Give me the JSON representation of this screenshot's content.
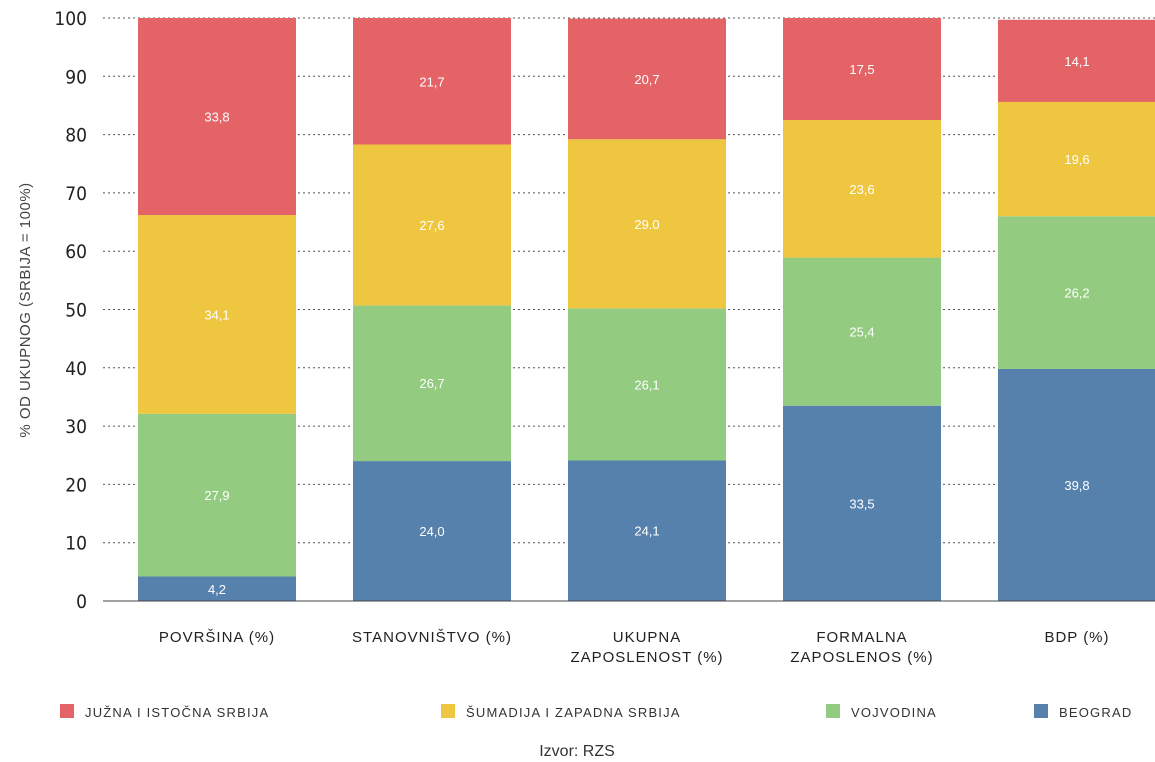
{
  "chart_data": {
    "type": "bar",
    "stacked": true,
    "categories": [
      [
        "POVRŠINA (%)"
      ],
      [
        "STANOVNIŠTVO (%)"
      ],
      [
        "UKUPNA",
        "ZAPOSLENOST (%)"
      ],
      [
        "FORMALNA",
        "ZAPOSLENOS (%)"
      ],
      [
        "BDP (%)"
      ]
    ],
    "series": [
      {
        "name": "BEOGRAD",
        "color": "#5681ad",
        "values": [
          4.2,
          24.0,
          24.1,
          33.5,
          39.8
        ],
        "labels": [
          "4,2",
          "24,0",
          "24,1",
          "33,5",
          "39,8"
        ]
      },
      {
        "name": "VOJVODINA",
        "color": "#93cb80",
        "values": [
          27.9,
          26.7,
          26.1,
          25.4,
          26.2
        ],
        "labels": [
          "27,9",
          "26,7",
          "26,1",
          "25,4",
          "26,2"
        ]
      },
      {
        "name": "ŠUMADIJA I ZAPADNA SRBIJA",
        "color": "#eec63f",
        "values": [
          34.1,
          27.6,
          29.0,
          23.6,
          19.6
        ],
        "labels": [
          "34,1",
          "27,6",
          "29.0",
          "23,6",
          "19,6"
        ]
      },
      {
        "name": "JUŽNA I ISTOČNA SRBIJA",
        "color": "#e46366",
        "values": [
          33.8,
          21.7,
          20.7,
          17.5,
          14.1
        ],
        "labels": [
          "33,8",
          "21,7",
          "20,7",
          "17,5",
          "14,1"
        ]
      }
    ],
    "legend_order": [
      "JUŽNA I ISTOČNA SRBIJA",
      "ŠUMADIJA I ZAPADNA SRBIJA",
      "VOJVODINA",
      "BEOGRAD"
    ],
    "legend_position": "bottom",
    "ylabel": "% OD UKUPNOG (SRBIJA = 100%)",
    "ylim": [
      0,
      100
    ],
    "yticks": [
      0,
      10,
      20,
      30,
      40,
      50,
      60,
      70,
      80,
      90,
      100
    ],
    "grid": "dotted-horizontal",
    "source": "Izvor: RZS"
  }
}
